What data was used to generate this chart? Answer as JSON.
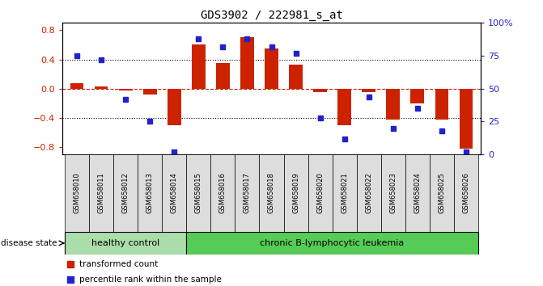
{
  "title": "GDS3902 / 222981_s_at",
  "samples": [
    "GSM658010",
    "GSM658011",
    "GSM658012",
    "GSM658013",
    "GSM658014",
    "GSM658015",
    "GSM658016",
    "GSM658017",
    "GSM658018",
    "GSM658019",
    "GSM658020",
    "GSM658021",
    "GSM658022",
    "GSM658023",
    "GSM658024",
    "GSM658025",
    "GSM658026"
  ],
  "red_bars": [
    0.07,
    0.03,
    -0.02,
    -0.08,
    -0.5,
    0.6,
    0.35,
    0.7,
    0.55,
    0.33,
    -0.05,
    -0.5,
    -0.05,
    -0.42,
    -0.2,
    -0.42,
    -0.82
  ],
  "blue_dots_pct": [
    75,
    72,
    42,
    25,
    2,
    88,
    82,
    88,
    82,
    77,
    28,
    12,
    44,
    20,
    35,
    18,
    2
  ],
  "healthy_count": 5,
  "disease_count": 12,
  "ylim": [
    -0.9,
    0.9
  ],
  "y2lim": [
    0,
    100
  ],
  "y_ticks": [
    -0.8,
    -0.4,
    0.0,
    0.4,
    0.8
  ],
  "y2_ticks": [
    0,
    25,
    50,
    75,
    100
  ],
  "hline_dotted": [
    -0.4,
    0.4
  ],
  "hline_dashed": [
    0.0
  ],
  "red_color": "#CC2200",
  "blue_color": "#2222CC",
  "healthy_color": "#AADDAA",
  "leukemia_color": "#55CC55",
  "bar_width": 0.55,
  "fig_width": 6.71,
  "fig_height": 3.54,
  "dpi": 100
}
